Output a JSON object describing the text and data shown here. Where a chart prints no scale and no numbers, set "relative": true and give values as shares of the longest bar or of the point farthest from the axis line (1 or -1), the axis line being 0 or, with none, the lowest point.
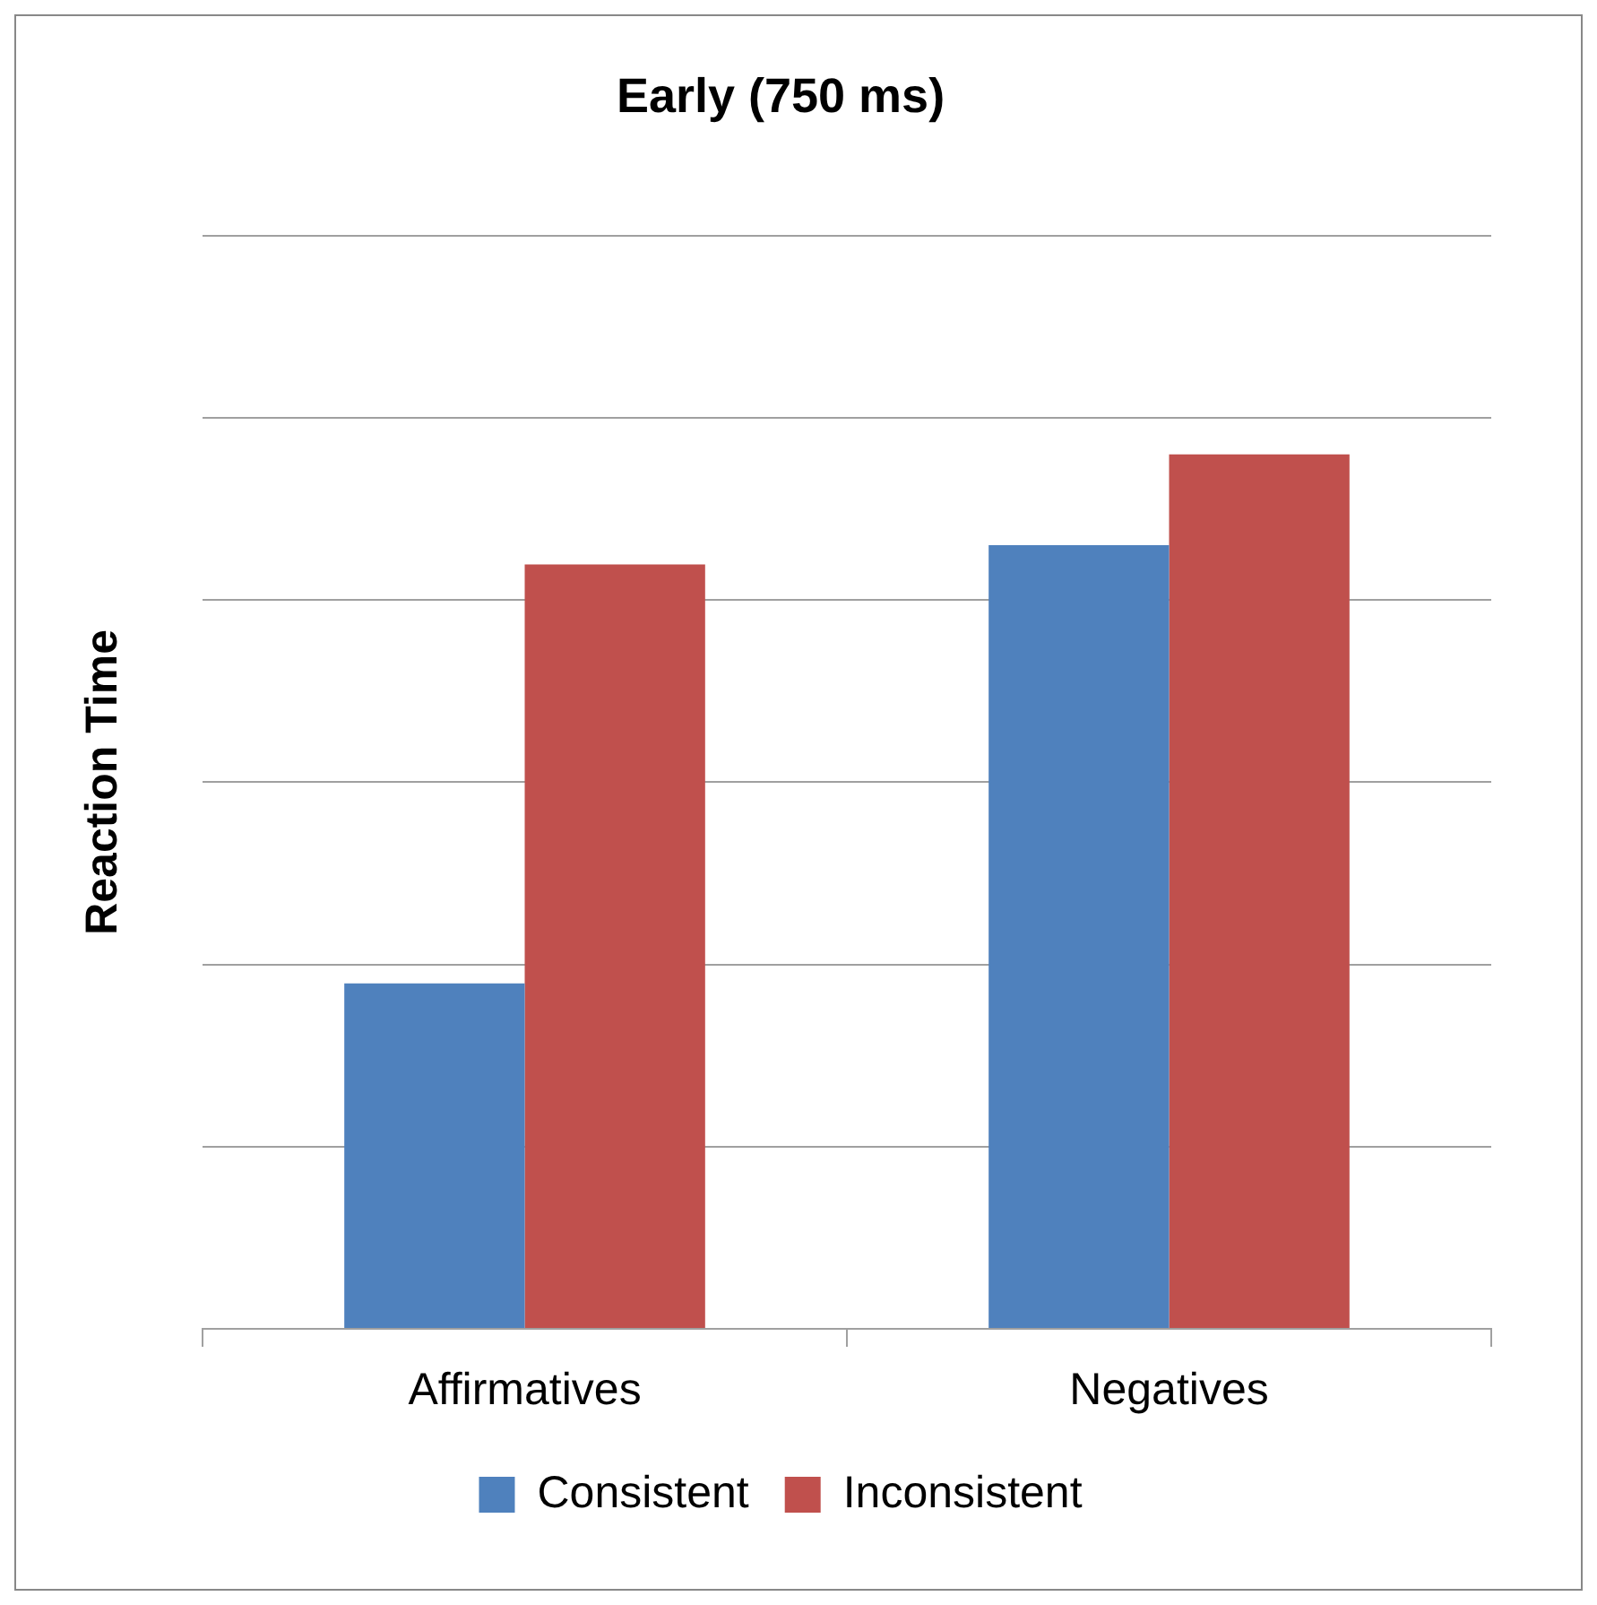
{
  "chart_data": {
    "type": "bar",
    "title": "Early (750 ms)",
    "ylabel": "Reaction Time",
    "relative": true,
    "categories": [
      "Affirmatives",
      "Negatives"
    ],
    "series": [
      {
        "name": "Consistent",
        "color": "#4f81bd",
        "values": [
          0.395,
          0.896
        ]
      },
      {
        "name": "Inconsistent",
        "color": "#c0504d",
        "values": [
          0.874,
          1
        ]
      }
    ],
    "grid": "y",
    "legend": "bottom"
  }
}
